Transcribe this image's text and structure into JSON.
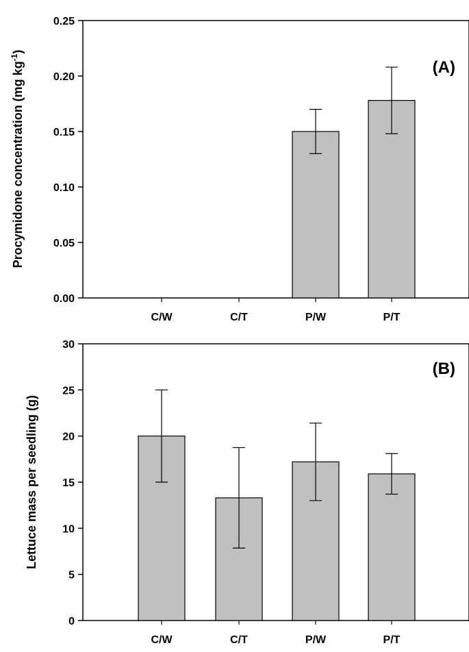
{
  "chart_data": [
    {
      "type": "bar",
      "panel_label": "(A)",
      "ylabel": "Procymidone concentration (mg kg",
      "ylabel_sup": "-1",
      "ylabel_close": ")",
      "categories": [
        "C/W",
        "C/T",
        "P/W",
        "P/T"
      ],
      "values": [
        0,
        0,
        0.15,
        0.178
      ],
      "errors": [
        null,
        null,
        0.02,
        0.03
      ],
      "ylim": [
        0,
        0.25
      ],
      "yticks": [
        "0.00",
        "0.05",
        "0.10",
        "0.15",
        "0.20",
        "0.25"
      ],
      "bar_color": "#c0c0c0",
      "grid": false
    },
    {
      "type": "bar",
      "panel_label": "(B)",
      "ylabel": "Lettuce mass per seedling (g)",
      "categories": [
        "C/W",
        "C/T",
        "P/W",
        "P/T"
      ],
      "values": [
        20.0,
        13.3,
        17.2,
        15.9
      ],
      "errors": [
        5.0,
        5.45,
        4.2,
        2.2
      ],
      "ylim": [
        0,
        30
      ],
      "yticks": [
        "0",
        "5",
        "10",
        "15",
        "20",
        "25",
        "30"
      ],
      "bar_color": "#c0c0c0",
      "grid": false
    }
  ]
}
